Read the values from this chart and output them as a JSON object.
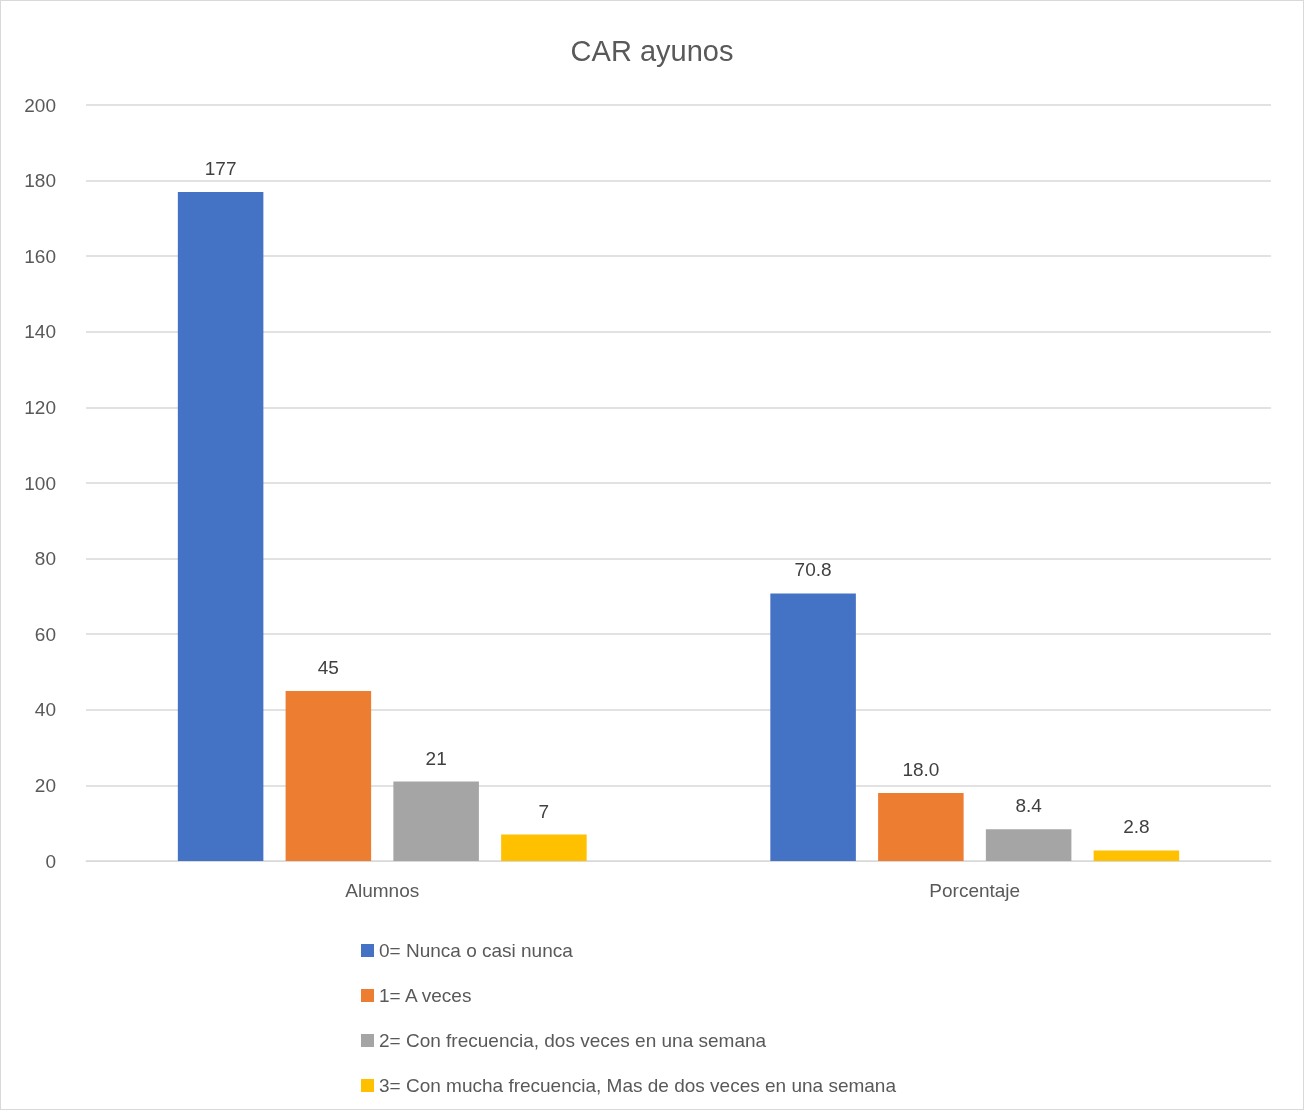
{
  "chart_data": {
    "type": "bar",
    "title": "CAR ayunos",
    "categories": [
      "Alumnos",
      "Porcentaje"
    ],
    "series": [
      {
        "name": "0= Nunca o casi nunca",
        "color": "#4472c4",
        "values": [
          177,
          70.8
        ],
        "value_labels": [
          "177",
          "70.8"
        ]
      },
      {
        "name": "1= A veces",
        "color": "#ed7d31",
        "values": [
          45,
          18.0
        ],
        "value_labels": [
          "45",
          "18.0"
        ]
      },
      {
        "name": "2= Con frecuencia, dos veces en una semana",
        "color": "#a5a5a5",
        "values": [
          21,
          8.4
        ],
        "value_labels": [
          "21",
          "8.4"
        ]
      },
      {
        "name": "3= Con mucha frecuencia, Mas de dos veces en una semana",
        "color": "#ffc000",
        "values": [
          7,
          2.8
        ],
        "value_labels": [
          "7",
          "2.8"
        ]
      }
    ],
    "ylim": [
      0,
      200
    ],
    "yticks": [
      0,
      20,
      40,
      60,
      80,
      100,
      120,
      140,
      160,
      180,
      200
    ],
    "grid": "y",
    "legend": "bottom"
  }
}
